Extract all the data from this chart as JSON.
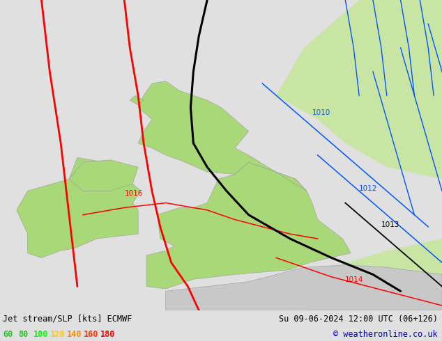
{
  "title_left": "Jet stream/SLP [kts] ECMWF",
  "title_right": "Su 09-06-2024 12:00 UTC (06+126)",
  "copyright": "© weatheronline.co.uk",
  "legend_values": [
    "60",
    "80",
    "100",
    "120",
    "140",
    "160",
    "180"
  ],
  "legend_colors": [
    "#33bb33",
    "#33bb33",
    "#00ff00",
    "#ffcc00",
    "#ff8800",
    "#ff3300",
    "#ff0000"
  ],
  "background_color": "#e0e0e0",
  "land_gray_color": "#c8c8c8",
  "land_green_color": "#a8d878",
  "ocean_color": "#e0e0e0",
  "jet_black_color": "#000000",
  "jet_red_color": "#ff0000",
  "slp_blue_color": "#0055ff",
  "slp_black_color": "#000000",
  "slp_red_color": "#ff0000",
  "green_shade_color": "#c0e890",
  "fig_width": 6.34,
  "fig_height": 4.9,
  "bottom_bar_color": "#d8d8d8"
}
